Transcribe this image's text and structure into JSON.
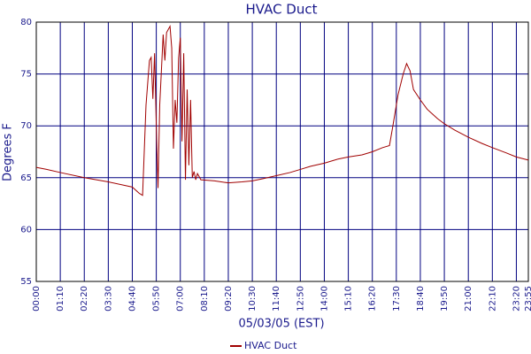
{
  "chart_data": {
    "type": "line",
    "title": "HVAC Duct",
    "xlabel": "05/03/05 (EST)",
    "ylabel": "Degrees F",
    "x": [
      0,
      30,
      70,
      140,
      210,
      280,
      300,
      310,
      320,
      330,
      335,
      340,
      345,
      350,
      355,
      360,
      370,
      375,
      380,
      390,
      395,
      400,
      405,
      410,
      415,
      420,
      425,
      430,
      435,
      440,
      445,
      450,
      455,
      460,
      465,
      470,
      480,
      520,
      560,
      600,
      630,
      660,
      700,
      740,
      770,
      800,
      840,
      880,
      910,
      950,
      980,
      1010,
      1030,
      1040,
      1055,
      1070,
      1080,
      1090,
      1100,
      1120,
      1140,
      1170,
      1190,
      1220,
      1260,
      1300,
      1330,
      1370,
      1400,
      1435
    ],
    "series": [
      {
        "name": "HVAC Duct",
        "color": "#a00000",
        "values": [
          66.0,
          65.8,
          65.5,
          65.0,
          64.6,
          64.1,
          63.5,
          63.3,
          72.0,
          76.3,
          76.6,
          72.6,
          77.0,
          70.0,
          64.0,
          72.0,
          78.8,
          76.3,
          79.0,
          79.6,
          77.5,
          67.8,
          72.5,
          70.3,
          76.5,
          78.5,
          68.5,
          77.0,
          64.8,
          73.5,
          66.2,
          72.5,
          65.0,
          65.6,
          64.8,
          65.4,
          64.8,
          64.7,
          64.5,
          64.6,
          64.7,
          64.9,
          65.2,
          65.5,
          65.8,
          66.1,
          66.4,
          66.8,
          67.0,
          67.2,
          67.5,
          67.9,
          68.1,
          70.0,
          73.0,
          75.0,
          76.0,
          75.3,
          73.5,
          72.5,
          71.6,
          70.7,
          70.2,
          69.6,
          68.9,
          68.3,
          67.9,
          67.4,
          67.0,
          66.7
        ]
      }
    ],
    "xlim": [
      0,
      1435
    ],
    "xticks": [
      {
        "value": 0,
        "label": "00:00"
      },
      {
        "value": 70,
        "label": "01:10"
      },
      {
        "value": 140,
        "label": "02:20"
      },
      {
        "value": 210,
        "label": "03:30"
      },
      {
        "value": 280,
        "label": "04:40"
      },
      {
        "value": 350,
        "label": "05:50"
      },
      {
        "value": 420,
        "label": "07:00"
      },
      {
        "value": 490,
        "label": "08:10"
      },
      {
        "value": 560,
        "label": "09:20"
      },
      {
        "value": 630,
        "label": "10:30"
      },
      {
        "value": 700,
        "label": "11:40"
      },
      {
        "value": 770,
        "label": "12:50"
      },
      {
        "value": 840,
        "label": "14:00"
      },
      {
        "value": 910,
        "label": "15:10"
      },
      {
        "value": 980,
        "label": "16:20"
      },
      {
        "value": 1050,
        "label": "17:30"
      },
      {
        "value": 1120,
        "label": "18:40"
      },
      {
        "value": 1190,
        "label": "19:50"
      },
      {
        "value": 1260,
        "label": "21:00"
      },
      {
        "value": 1330,
        "label": "22:10"
      },
      {
        "value": 1400,
        "label": "23:20"
      },
      {
        "value": 1435,
        "label": "23:55"
      }
    ],
    "ylim": [
      55,
      80
    ],
    "yticks": [
      55,
      60,
      65,
      70,
      75,
      80
    ],
    "grid": true
  }
}
